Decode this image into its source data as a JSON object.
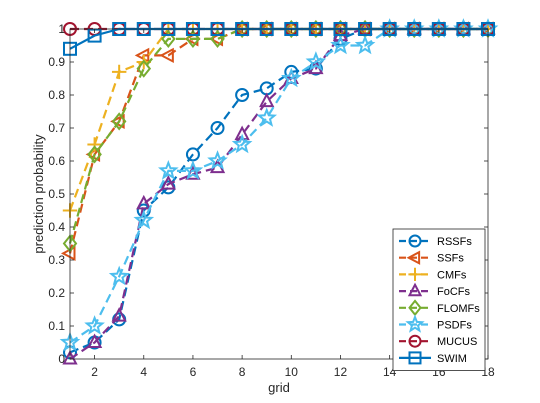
{
  "chart_data": {
    "type": "line",
    "xlabel": "grid",
    "ylabel": "prediction probability",
    "xlim": [
      1,
      18
    ],
    "ylim": [
      0,
      1
    ],
    "xticks": [
      2,
      4,
      6,
      8,
      10,
      12,
      14,
      16,
      18
    ],
    "yticks": [
      0,
      0.1,
      0.2,
      0.3,
      0.4,
      0.5,
      0.6,
      0.7,
      0.8,
      0.9,
      1
    ],
    "grid": false,
    "legend_position": "bottom-right",
    "x": [
      1,
      2,
      3,
      4,
      5,
      6,
      7,
      8,
      9,
      10,
      11,
      12,
      13,
      14,
      15,
      16,
      17,
      18
    ],
    "series": [
      {
        "name": "RSSFs",
        "color": "#0072BD",
        "marker": "circle",
        "values": [
          0.02,
          0.05,
          0.12,
          0.45,
          0.52,
          0.62,
          0.7,
          0.8,
          0.82,
          0.87,
          0.88,
          0.97,
          1.0,
          1.0,
          1.0,
          1.0,
          1.0,
          1.0
        ]
      },
      {
        "name": "SSFs",
        "color": "#D95319",
        "marker": "triangle-left",
        "values": [
          0.32,
          0.62,
          0.72,
          0.92,
          0.92,
          0.97,
          0.97,
          1.0,
          1.0,
          1.0,
          1.0,
          1.0,
          1.0,
          1.0,
          1.0,
          1.0,
          1.0,
          1.0
        ]
      },
      {
        "name": "CMFs",
        "color": "#EDB120",
        "marker": "plus",
        "values": [
          0.45,
          0.65,
          0.87,
          0.9,
          1.0,
          1.0,
          1.0,
          1.0,
          1.0,
          1.0,
          1.0,
          1.0,
          1.0,
          1.0,
          1.0,
          1.0,
          1.0,
          1.0
        ]
      },
      {
        "name": "FoCFs",
        "color": "#7E2F8E",
        "marker": "triangle-up",
        "values": [
          0.0,
          0.05,
          0.13,
          0.47,
          0.53,
          0.56,
          0.58,
          0.68,
          0.78,
          0.85,
          0.88,
          0.98,
          1.0,
          1.0,
          1.0,
          1.0,
          1.0,
          1.0
        ]
      },
      {
        "name": "FLOMFs",
        "color": "#77AC30",
        "marker": "diamond",
        "values": [
          0.35,
          0.62,
          0.72,
          0.88,
          0.97,
          0.97,
          0.97,
          1.0,
          1.0,
          1.0,
          1.0,
          1.0,
          1.0,
          1.0,
          1.0,
          1.0,
          1.0,
          1.0
        ]
      },
      {
        "name": "PSDFs",
        "color": "#4DBEEE",
        "marker": "star",
        "values": [
          0.05,
          0.1,
          0.25,
          0.42,
          0.57,
          0.57,
          0.6,
          0.65,
          0.73,
          0.85,
          0.9,
          0.95,
          0.95,
          1.0,
          1.0,
          1.0,
          1.0,
          1.0
        ]
      },
      {
        "name": "MUCUS",
        "color": "#A2142F",
        "marker": "circle",
        "values": [
          1.0,
          1.0,
          1.0,
          1.0,
          1.0,
          1.0,
          1.0,
          1.0,
          1.0,
          1.0,
          1.0,
          1.0,
          1.0,
          1.0,
          1.0,
          1.0,
          1.0,
          1.0
        ]
      },
      {
        "name": "SWIM",
        "color": "#0072BD",
        "marker": "square",
        "values": [
          0.94,
          0.98,
          1.0,
          1.0,
          1.0,
          1.0,
          1.0,
          1.0,
          1.0,
          1.0,
          1.0,
          1.0,
          1.0,
          1.0,
          1.0,
          1.0,
          1.0,
          1.0
        ]
      }
    ]
  }
}
